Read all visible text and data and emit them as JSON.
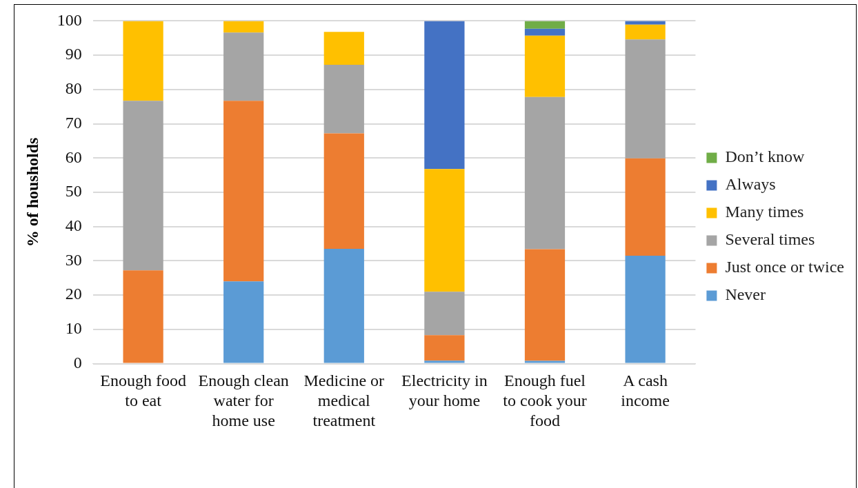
{
  "chart_data": {
    "type": "bar",
    "stacked": true,
    "ylabel": "% of housholds",
    "categories": [
      "Enough food to eat",
      "Enough clean water for home use",
      "Medicine or medical treatment",
      "Electricity in your home",
      "Enough fuel to cook your food",
      "A cash income"
    ],
    "series": [
      {
        "name": "Never",
        "color": "#5b9bd5",
        "values": [
          0,
          24,
          33.5,
          0.9,
          0.8,
          31.5
        ]
      },
      {
        "name": "Just once or twice",
        "color": "#ed7d31",
        "values": [
          27.2,
          52.7,
          33.7,
          7.4,
          32.6,
          28.4
        ]
      },
      {
        "name": "Several times",
        "color": "#a5a5a5",
        "values": [
          49.5,
          19.9,
          20,
          12.7,
          44.4,
          34.7
        ]
      },
      {
        "name": "Many times",
        "color": "#ffc000",
        "values": [
          23.3,
          3.4,
          9.6,
          35.8,
          17.9,
          4.3
        ]
      },
      {
        "name": "Always",
        "color": "#4472c4",
        "values": [
          0,
          0,
          0,
          43.2,
          2,
          1.1
        ]
      },
      {
        "name": "Don’t know",
        "color": "#70ad47",
        "values": [
          0,
          0,
          0,
          0,
          2.3,
          0
        ]
      }
    ],
    "ylim": [
      0,
      100
    ],
    "yticks": [
      0,
      10,
      20,
      30,
      40,
      50,
      60,
      70,
      80,
      90,
      100
    ],
    "grid": "y",
    "legend": "right"
  }
}
